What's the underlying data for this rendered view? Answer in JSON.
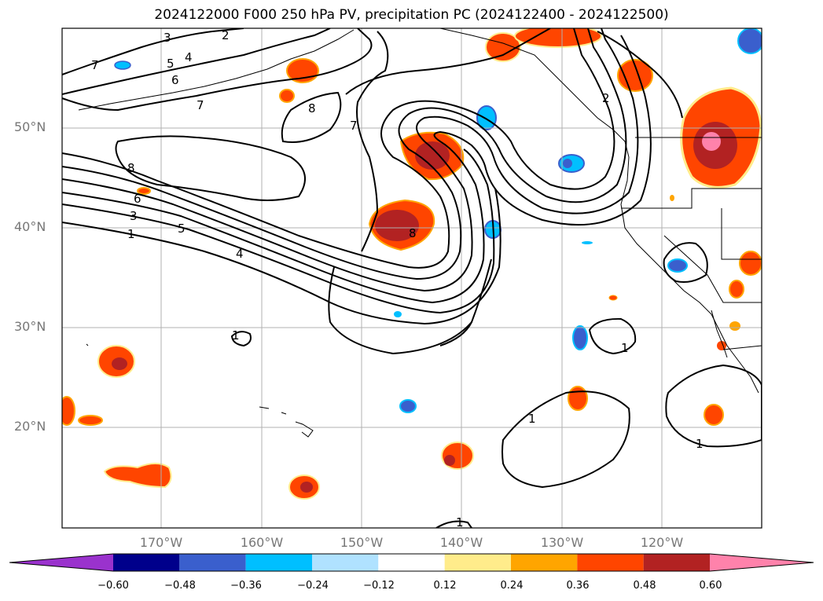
{
  "title": "2024122000 F000 250 hPa PV, precipitation PC (2024122400 - 2024122500)",
  "lat_labels": [
    "50°N",
    "40°N",
    "30°N",
    "20°N"
  ],
  "lon_labels": [
    "170°W",
    "160°W",
    "150°W",
    "140°W",
    "130°W",
    "120°W"
  ],
  "contour_labels": [
    "3",
    "2",
    "4",
    "5",
    "6",
    "7",
    "7",
    "8",
    "8",
    "6",
    "3",
    "5",
    "1",
    "4",
    "7",
    "8",
    "2",
    "1",
    "1",
    "1",
    "1",
    "1"
  ],
  "colorbar": {
    "ticks": [
      "−0.60",
      "−0.48",
      "−0.36",
      "−0.24",
      "−0.12",
      "0.12",
      "0.24",
      "0.36",
      "0.48",
      "0.60"
    ],
    "colors": [
      "#9a32cd",
      "#00008b",
      "#3a5fcd",
      "#00bfff",
      "#b0e2ff",
      "#ffffff",
      "#ffec8b",
      "#ffa500",
      "#ff4500",
      "#b22222",
      "#ff82ab"
    ]
  }
}
